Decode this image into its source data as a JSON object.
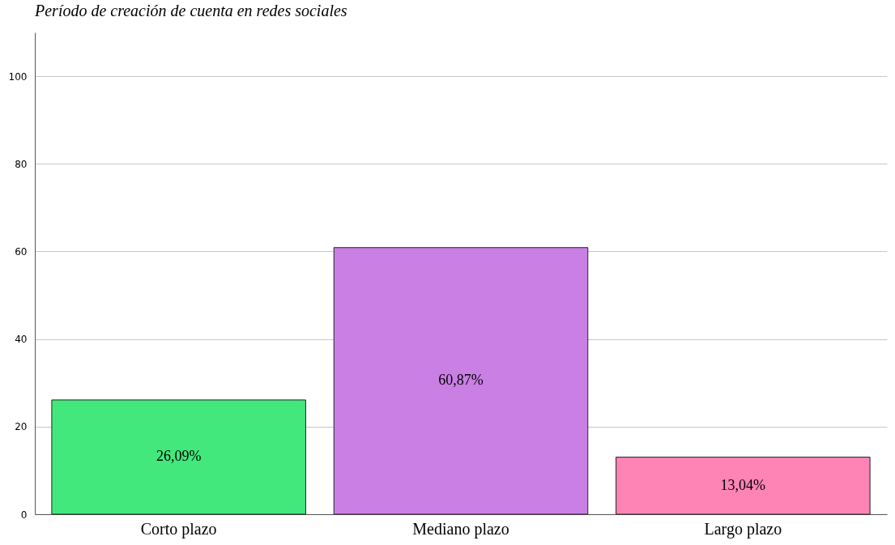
{
  "chart_data": {
    "type": "bar",
    "title": "Período de creación de cuenta en redes sociales",
    "categories": [
      "Corto plazo",
      "Mediano plazo",
      "Largo plazo"
    ],
    "values": [
      26.09,
      60.87,
      13.04
    ],
    "colors": [
      "#43e87c",
      "#c97fe4",
      "#fd84b5"
    ],
    "value_labels": [
      "26,09%",
      "60,87%",
      "13,04%"
    ],
    "ylim": [
      0,
      110
    ],
    "yticks": [
      0,
      20,
      40,
      60,
      80,
      100
    ],
    "grid": "y"
  }
}
